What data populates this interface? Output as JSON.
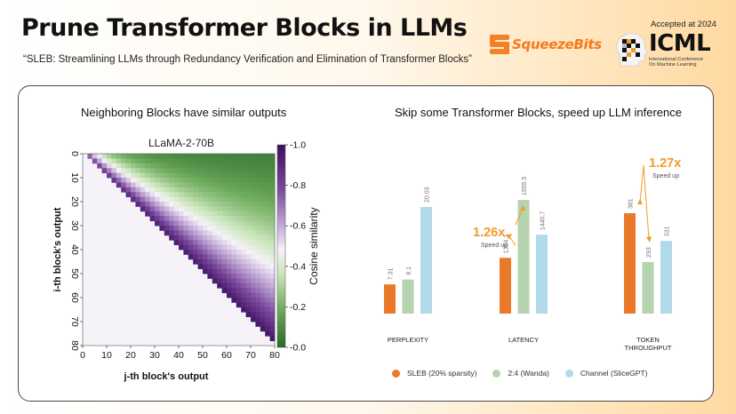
{
  "header": {
    "title": "Prune Transformer Blocks in LLMs",
    "subtitle": "“SLEB: Streamlining LLMs through Redundancy Verification and Elimination of Transformer Blocks”"
  },
  "logos": {
    "squeezebits": "SqueezeBits",
    "accepted": "Accepted at 2024",
    "icml": "ICML",
    "conference_line1": "International Conference",
    "conference_line2": "On Machine Learning"
  },
  "left_panel": {
    "title": "Neighboring Blocks have similar outputs"
  },
  "right_panel": {
    "title": "Skip some Transformer Blocks, speed up LLM inference"
  },
  "colors": {
    "sleb": "#ea7a2a",
    "wanda": "#b5d3ae",
    "slicegpt": "#b0d9ea",
    "accent": "#f39a28",
    "heatmap_low": "#2a6a2a",
    "heatmap_mid": "#f6f3f8",
    "heatmap_high": "#3d0f5e"
  },
  "chart_data": [
    {
      "type": "heatmap",
      "title": "LLaMA-2-70B",
      "xlabel": "j-th block's output",
      "ylabel": "i-th block's output",
      "x_ticks": [
        "0",
        "10",
        "20",
        "30",
        "40",
        "50",
        "60",
        "70",
        "80"
      ],
      "y_ticks": [
        "0",
        "10",
        "20",
        "30",
        "40",
        "50",
        "60",
        "70",
        "80"
      ],
      "range": [
        0,
        80
      ],
      "colorbar": {
        "label": "Cosine similarity",
        "ticks": [
          "1.0",
          "0.8",
          "0.6",
          "0.4",
          "0.2",
          "0.0"
        ],
        "range": [
          0,
          1
        ]
      }
    },
    {
      "type": "bar",
      "categories": [
        "PERPLEXITY",
        "LATENCY",
        "TOKEN THROUGHPUT"
      ],
      "series": [
        {
          "name": "SLEB (20% sparsity)",
          "values": [
            "7.31",
            "1364.1",
            "381"
          ]
        },
        {
          "name": "2:4 (Wanda)",
          "values": [
            "8.1",
            "1555.5",
            "293"
          ]
        },
        {
          "name": "Channel (SliceGPT)",
          "values": [
            "20.03",
            "1440.7",
            "331"
          ]
        }
      ],
      "annotations": [
        {
          "category": "LATENCY",
          "value": "1.26x",
          "label": "Speed up"
        },
        {
          "category": "TOKEN THROUGHPUT",
          "value": "1.27x",
          "label": "Speed up"
        }
      ]
    }
  ]
}
